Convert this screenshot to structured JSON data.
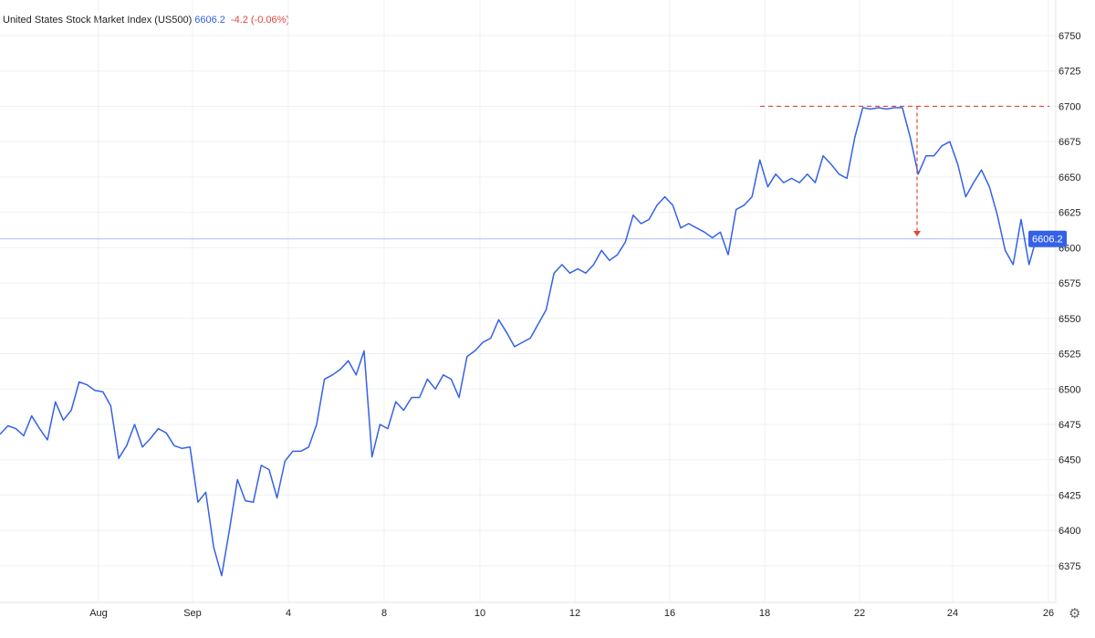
{
  "header": {
    "title": "United States Stock Market Index (US500)",
    "price": "6606.2",
    "change": "-4.2 (-0.06%)"
  },
  "colors": {
    "line": "#3461e8",
    "annotation": "#e0463a",
    "grid": "#eef0f3"
  },
  "settings_icon": "gear-icon",
  "chart_data": {
    "type": "line",
    "title": "United States Stock Market Index (US500)",
    "xlabel": "",
    "ylabel": "",
    "ylim": [
      6350,
      6765
    ],
    "yticks": [
      6375,
      6400,
      6425,
      6450,
      6475,
      6500,
      6525,
      6550,
      6575,
      6600,
      6625,
      6650,
      6675,
      6700,
      6725,
      6750
    ],
    "xtick_labels": [
      "Aug",
      "Sep",
      "4",
      "8",
      "10",
      "12",
      "16",
      "18",
      "22",
      "24",
      "26"
    ],
    "grid": true,
    "last_price_label": "6606.2",
    "last_price": 6606.2,
    "annotation": {
      "resistance_level": 6700,
      "arrow_from": 6700,
      "arrow_to": 6608
    },
    "series": [
      {
        "name": "US500",
        "values": [
          6468,
          6474,
          6472,
          6467,
          6481,
          6472,
          6464,
          6491,
          6478,
          6485,
          6505,
          6503,
          6499,
          6498,
          6488,
          6451,
          6460,
          6475,
          6459,
          6465,
          6472,
          6469,
          6460,
          6458,
          6459,
          6420,
          6427,
          6388,
          6368,
          6401,
          6436,
          6421,
          6420,
          6446,
          6443,
          6423,
          6449,
          6456,
          6456,
          6459,
          6475,
          6507,
          6510,
          6514,
          6520,
          6510,
          6527,
          6452,
          6475,
          6472,
          6491,
          6485,
          6494,
          6494,
          6507,
          6500,
          6510,
          6507,
          6494,
          6523,
          6527,
          6533,
          6536,
          6549,
          6540,
          6530,
          6533,
          6536,
          6546,
          6556,
          6582,
          6588,
          6582,
          6585,
          6582,
          6588,
          6598,
          6591,
          6595,
          6604,
          6623,
          6617,
          6620,
          6630,
          6636,
          6630,
          6614,
          6617,
          6614,
          6611,
          6607,
          6611,
          6595,
          6627,
          6630,
          6636,
          6662,
          6643,
          6652,
          6646,
          6649,
          6646,
          6652,
          6646,
          6665,
          6659,
          6652,
          6649,
          6678,
          6699,
          6698,
          6699,
          6698,
          6699,
          6699,
          6678,
          6652,
          6665,
          6665,
          6672,
          6675,
          6659,
          6636,
          6646,
          6655,
          6643,
          6623,
          6598,
          6588,
          6620,
          6588,
          6608,
          6606
        ]
      }
    ]
  }
}
